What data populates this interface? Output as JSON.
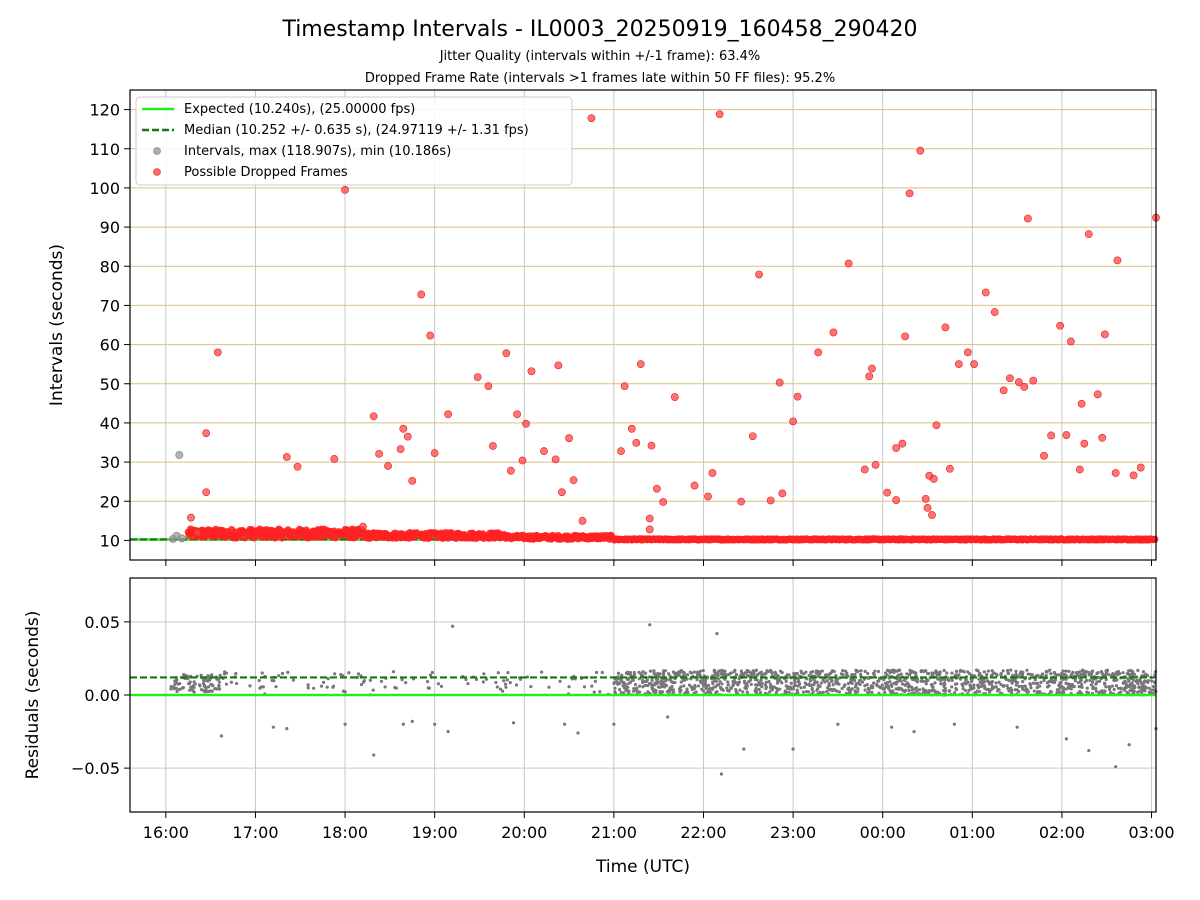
{
  "chart_data": [
    {
      "type": "scatter",
      "title": "Timestamp Intervals - IL0003_20250919_160458_290420",
      "subtitle_1": "Jitter Quality (intervals within +/-1 frame): 63.4%",
      "subtitle_2": "Dropped Frame Rate (intervals >1 frames late within 50 FF files): 95.2%",
      "ylabel": "Intervals (seconds)",
      "xlim_hours": [
        15.6,
        27.05
      ],
      "ylim": [
        5,
        125
      ],
      "yticks": [
        10,
        20,
        30,
        40,
        50,
        60,
        70,
        80,
        90,
        100,
        110,
        120
      ],
      "grid": true,
      "legend_position": "top-left",
      "legend": [
        {
          "label": "Expected (10.240s), (25.00000 fps)",
          "color": "#22ee22",
          "style": "solid-line"
        },
        {
          "label": "Median (10.252 +/- 0.635 s), (24.97119 +/- 1.31 fps)",
          "color": "#117711",
          "style": "dashed-line"
        },
        {
          "label": "Intervals, max (118.907s), min (10.186s)",
          "color": "#999999",
          "style": "dot"
        },
        {
          "label": "Possible Dropped Frames",
          "color": "#ff3333",
          "style": "dot"
        }
      ],
      "expected_value": 10.24,
      "median_value": 10.252,
      "intervals": [
        [
          16.08,
          10.4
        ],
        [
          16.12,
          11.2
        ],
        [
          16.15,
          31.8
        ],
        [
          16.18,
          10.5
        ]
      ],
      "dropped_frames": [
        [
          16.28,
          15.8
        ],
        [
          16.35,
          12.0
        ],
        [
          16.45,
          22.3
        ],
        [
          16.45,
          37.4
        ],
        [
          16.58,
          58.0
        ],
        [
          17.35,
          31.3
        ],
        [
          17.47,
          28.8
        ],
        [
          17.88,
          30.8
        ],
        [
          18.0,
          99.5
        ],
        [
          18.2,
          13.5
        ],
        [
          18.32,
          41.7
        ],
        [
          18.38,
          32.1
        ],
        [
          18.48,
          29.0
        ],
        [
          18.62,
          33.3
        ],
        [
          18.65,
          38.5
        ],
        [
          18.7,
          36.5
        ],
        [
          18.75,
          25.2
        ],
        [
          18.85,
          72.8
        ],
        [
          18.95,
          62.3
        ],
        [
          19.0,
          32.3
        ],
        [
          19.15,
          42.2
        ],
        [
          19.48,
          51.7
        ],
        [
          19.6,
          49.4
        ],
        [
          19.65,
          34.1
        ],
        [
          19.8,
          57.8
        ],
        [
          19.85,
          27.8
        ],
        [
          19.92,
          42.2
        ],
        [
          19.98,
          30.4
        ],
        [
          20.02,
          39.8
        ],
        [
          20.08,
          53.2
        ],
        [
          20.22,
          32.8
        ],
        [
          20.35,
          30.7
        ],
        [
          20.38,
          54.7
        ],
        [
          20.42,
          22.3
        ],
        [
          20.5,
          36.1
        ],
        [
          20.55,
          25.4
        ],
        [
          20.65,
          15.0
        ],
        [
          20.75,
          117.8
        ],
        [
          21.08,
          32.8
        ],
        [
          21.12,
          49.4
        ],
        [
          21.2,
          38.5
        ],
        [
          21.25,
          34.9
        ],
        [
          21.3,
          55.0
        ],
        [
          21.4,
          15.6
        ],
        [
          21.4,
          12.8
        ],
        [
          21.42,
          34.2
        ],
        [
          21.48,
          23.2
        ],
        [
          21.55,
          19.8
        ],
        [
          21.68,
          46.6
        ],
        [
          21.9,
          24.0
        ],
        [
          22.05,
          21.2
        ],
        [
          22.1,
          27.2
        ],
        [
          22.18,
          118.8
        ],
        [
          22.42,
          19.9
        ],
        [
          22.55,
          36.6
        ],
        [
          22.62,
          77.9
        ],
        [
          22.75,
          20.2
        ],
        [
          22.85,
          50.3
        ],
        [
          22.88,
          22.0
        ],
        [
          23.0,
          40.4
        ],
        [
          23.05,
          46.7
        ],
        [
          23.28,
          58.0
        ],
        [
          23.45,
          63.1
        ],
        [
          23.62,
          80.7
        ],
        [
          23.8,
          28.1
        ],
        [
          23.85,
          51.9
        ],
        [
          23.88,
          53.9
        ],
        [
          23.92,
          29.3
        ],
        [
          24.05,
          22.2
        ],
        [
          24.15,
          20.3
        ],
        [
          24.15,
          33.6
        ],
        [
          24.22,
          34.7
        ],
        [
          24.25,
          62.1
        ],
        [
          24.3,
          98.6
        ],
        [
          24.42,
          109.5
        ],
        [
          24.48,
          20.6
        ],
        [
          24.5,
          18.3
        ],
        [
          24.52,
          26.5
        ],
        [
          24.55,
          16.5
        ],
        [
          24.57,
          25.7
        ],
        [
          24.6,
          39.4
        ],
        [
          24.7,
          64.4
        ],
        [
          24.75,
          28.3
        ],
        [
          24.85,
          55.0
        ],
        [
          24.95,
          58.0
        ],
        [
          25.02,
          55.0
        ],
        [
          25.15,
          73.3
        ],
        [
          25.25,
          68.3
        ],
        [
          25.35,
          48.3
        ],
        [
          25.42,
          51.4
        ],
        [
          25.52,
          50.4
        ],
        [
          25.58,
          49.2
        ],
        [
          25.62,
          92.2
        ],
        [
          25.68,
          50.8
        ],
        [
          25.8,
          31.6
        ],
        [
          25.88,
          36.8
        ],
        [
          25.98,
          64.8
        ],
        [
          26.05,
          36.9
        ],
        [
          26.1,
          60.8
        ],
        [
          26.2,
          28.1
        ],
        [
          26.22,
          44.9
        ],
        [
          26.25,
          34.7
        ],
        [
          26.3,
          88.2
        ],
        [
          26.4,
          47.3
        ],
        [
          26.45,
          36.2
        ],
        [
          26.48,
          62.6
        ],
        [
          26.6,
          27.2
        ],
        [
          26.62,
          81.5
        ],
        [
          26.8,
          26.6
        ],
        [
          26.88,
          28.6
        ],
        [
          27.05,
          92.4
        ]
      ]
    },
    {
      "type": "scatter",
      "xlabel": "Time (UTC)",
      "ylabel": "Residuals (seconds)",
      "xlim_hours": [
        15.6,
        27.05
      ],
      "ylim": [
        -0.08,
        0.08
      ],
      "yticks": [
        -0.05,
        0.0,
        0.05
      ],
      "ytick_labels": [
        "−0.05",
        "0.00",
        "0.05"
      ],
      "xticks_hours": [
        16,
        17,
        18,
        19,
        20,
        21,
        22,
        23,
        24,
        25,
        26,
        27
      ],
      "xtick_labels": [
        "16:00",
        "17:00",
        "18:00",
        "19:00",
        "20:00",
        "21:00",
        "22:00",
        "23:00",
        "00:00",
        "01:00",
        "02:00",
        "03:00"
      ],
      "grid": true,
      "expected_value": 0.0,
      "median_value": 0.012,
      "residual_outliers": [
        [
          19.2,
          0.047
        ],
        [
          21.4,
          0.048
        ],
        [
          22.15,
          0.042
        ],
        [
          22.2,
          -0.054
        ],
        [
          18.32,
          -0.041
        ],
        [
          16.62,
          -0.028
        ],
        [
          17.2,
          -0.022
        ],
        [
          17.35,
          -0.023
        ],
        [
          18.0,
          -0.02
        ],
        [
          18.65,
          -0.02
        ],
        [
          18.75,
          -0.018
        ],
        [
          19.0,
          -0.02
        ],
        [
          19.15,
          -0.025
        ],
        [
          19.88,
          -0.019
        ],
        [
          20.45,
          -0.02
        ],
        [
          20.6,
          -0.026
        ],
        [
          21.0,
          -0.02
        ],
        [
          21.6,
          -0.015
        ],
        [
          22.45,
          -0.037
        ],
        [
          23.0,
          -0.037
        ],
        [
          23.5,
          -0.02
        ],
        [
          24.1,
          -0.022
        ],
        [
          24.35,
          -0.025
        ],
        [
          24.8,
          -0.02
        ],
        [
          25.5,
          -0.022
        ],
        [
          26.05,
          -0.03
        ],
        [
          26.3,
          -0.038
        ],
        [
          26.6,
          -0.049
        ],
        [
          26.75,
          -0.034
        ],
        [
          27.05,
          -0.023
        ]
      ]
    }
  ]
}
